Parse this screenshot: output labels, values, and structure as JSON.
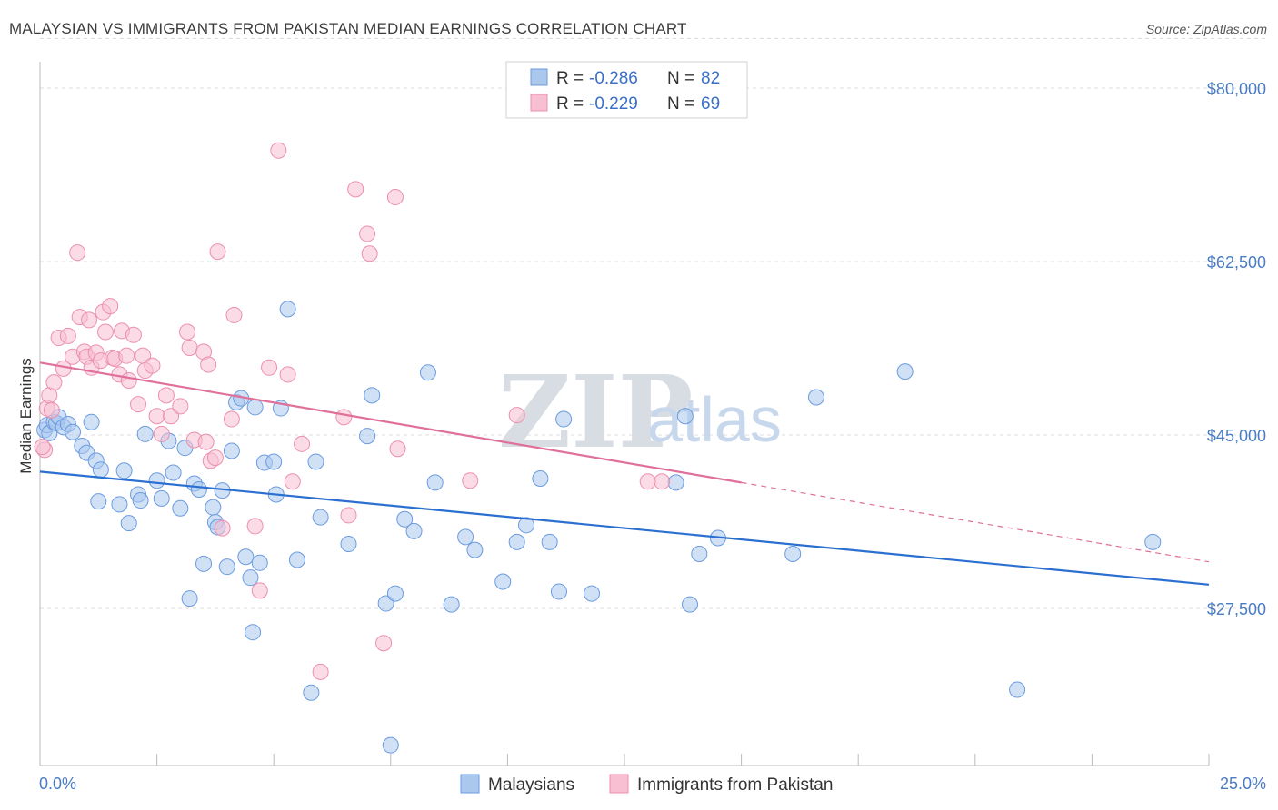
{
  "header": {
    "title": "MALAYSIAN VS IMMIGRANTS FROM PAKISTAN MEDIAN EARNINGS CORRELATION CHART",
    "source": "Source: ZipAtlas.com"
  },
  "watermark": {
    "zip": "ZIP",
    "atlas": "atlas"
  },
  "legend": {
    "r_label": "R =",
    "n_label": "N =",
    "rows": [
      {
        "r": "-0.286",
        "n": "82"
      },
      {
        "r": "-0.229",
        "n": "69"
      }
    ]
  },
  "colors": {
    "blue_fill": "#aac8ee",
    "blue_stroke": "#6b9be0",
    "blue_line": "#2b6fd1",
    "pink_fill": "#f7bfd1",
    "pink_stroke": "#ec8fae",
    "pink_line": "#e0709a",
    "grid": "#dcdcdc",
    "tick_text": "#4a7cc4"
  },
  "chart_data": {
    "type": "scatter",
    "title": "MALAYSIAN VS IMMIGRANTS FROM PAKISTAN MEDIAN EARNINGS CORRELATION CHART",
    "xlabel": "",
    "ylabel": "Median Earnings",
    "xlim": [
      0,
      25
    ],
    "ylim": [
      15000,
      85000
    ],
    "x_tick_labels": [
      "0.0%",
      "25.0%"
    ],
    "y_ticks": [
      27500,
      45000,
      62500,
      80000
    ],
    "y_tick_labels": [
      "$27,500",
      "$45,000",
      "$62,500",
      "$80,000"
    ],
    "grid": true,
    "legend_position": "top-center",
    "series": [
      {
        "name": "Malaysians",
        "r": -0.286,
        "n": 82,
        "trend": {
          "x": [
            0,
            25
          ],
          "y": [
            41300,
            29900
          ]
        },
        "points": [
          [
            0.1,
            45500
          ],
          [
            0.15,
            46000
          ],
          [
            0.2,
            45200
          ],
          [
            0.3,
            46300
          ],
          [
            0.35,
            46200
          ],
          [
            0.4,
            46800
          ],
          [
            0.5,
            45800
          ],
          [
            0.6,
            46100
          ],
          [
            0.7,
            45300
          ],
          [
            0.9,
            43900
          ],
          [
            1.0,
            43200
          ],
          [
            1.1,
            46300
          ],
          [
            1.2,
            42400
          ],
          [
            1.3,
            41500
          ],
          [
            1.25,
            38300
          ],
          [
            1.7,
            38000
          ],
          [
            1.8,
            41400
          ],
          [
            1.9,
            36100
          ],
          [
            2.1,
            39000
          ],
          [
            2.15,
            38400
          ],
          [
            2.25,
            45100
          ],
          [
            2.5,
            40400
          ],
          [
            2.6,
            38600
          ],
          [
            2.75,
            44400
          ],
          [
            2.85,
            41200
          ],
          [
            3.0,
            37600
          ],
          [
            3.1,
            43700
          ],
          [
            3.2,
            28500
          ],
          [
            3.3,
            40100
          ],
          [
            3.4,
            39500
          ],
          [
            3.5,
            32000
          ],
          [
            3.7,
            37700
          ],
          [
            3.75,
            36200
          ],
          [
            3.8,
            35700
          ],
          [
            3.9,
            39400
          ],
          [
            4.0,
            31700
          ],
          [
            4.1,
            43400
          ],
          [
            4.2,
            48300
          ],
          [
            4.3,
            48700
          ],
          [
            4.4,
            32700
          ],
          [
            4.5,
            30600
          ],
          [
            4.55,
            25100
          ],
          [
            4.6,
            47800
          ],
          [
            4.7,
            32100
          ],
          [
            4.8,
            42200
          ],
          [
            5.0,
            42300
          ],
          [
            5.05,
            39000
          ],
          [
            5.15,
            47700
          ],
          [
            5.3,
            57700
          ],
          [
            5.5,
            32400
          ],
          [
            5.8,
            19000
          ],
          [
            5.9,
            42300
          ],
          [
            6.0,
            36700
          ],
          [
            6.6,
            34000
          ],
          [
            7.0,
            44900
          ],
          [
            7.1,
            49000
          ],
          [
            7.4,
            28000
          ],
          [
            7.5,
            13700
          ],
          [
            7.6,
            29000
          ],
          [
            7.8,
            36500
          ],
          [
            8.0,
            35300
          ],
          [
            8.3,
            51300
          ],
          [
            8.45,
            40200
          ],
          [
            8.8,
            27900
          ],
          [
            9.1,
            34700
          ],
          [
            9.3,
            33400
          ],
          [
            9.9,
            30200
          ],
          [
            10.2,
            34200
          ],
          [
            10.4,
            35900
          ],
          [
            10.7,
            40600
          ],
          [
            10.9,
            34200
          ],
          [
            11.1,
            29200
          ],
          [
            11.2,
            46600
          ],
          [
            11.8,
            29000
          ],
          [
            13.6,
            40200
          ],
          [
            13.8,
            46900
          ],
          [
            13.9,
            27900
          ],
          [
            14.1,
            33000
          ],
          [
            14.5,
            34600
          ],
          [
            16.1,
            33000
          ],
          [
            16.6,
            48800
          ],
          [
            18.5,
            51400
          ],
          [
            20.9,
            19300
          ],
          [
            23.8,
            34200
          ]
        ]
      },
      {
        "name": "Immigrants from Pakistan",
        "r": -0.229,
        "n": 69,
        "trend": {
          "x": [
            0,
            15
          ],
          "y": [
            52300,
            40200
          ]
        },
        "trend_extension": {
          "x": [
            15,
            25
          ],
          "y": [
            40200,
            32200
          ]
        },
        "points": [
          [
            0.1,
            43500
          ],
          [
            0.15,
            47700
          ],
          [
            0.2,
            49000
          ],
          [
            0.3,
            50300
          ],
          [
            0.4,
            54800
          ],
          [
            0.5,
            51700
          ],
          [
            0.6,
            55000
          ],
          [
            0.7,
            52900
          ],
          [
            0.8,
            63400
          ],
          [
            0.85,
            56900
          ],
          [
            0.95,
            53400
          ],
          [
            1.0,
            52900
          ],
          [
            1.05,
            56600
          ],
          [
            1.1,
            51800
          ],
          [
            1.2,
            53300
          ],
          [
            1.3,
            52500
          ],
          [
            1.35,
            57400
          ],
          [
            1.4,
            55400
          ],
          [
            1.5,
            58000
          ],
          [
            1.55,
            52800
          ],
          [
            1.6,
            52700
          ],
          [
            1.7,
            51100
          ],
          [
            1.75,
            55500
          ],
          [
            1.85,
            53000
          ],
          [
            1.9,
            50500
          ],
          [
            2.0,
            55100
          ],
          [
            2.1,
            48100
          ],
          [
            2.2,
            53000
          ],
          [
            2.25,
            51500
          ],
          [
            2.4,
            52000
          ],
          [
            2.5,
            46900
          ],
          [
            2.6,
            45100
          ],
          [
            2.7,
            49000
          ],
          [
            2.8,
            46900
          ],
          [
            3.0,
            47900
          ],
          [
            3.15,
            55400
          ],
          [
            3.2,
            53800
          ],
          [
            3.3,
            44500
          ],
          [
            3.5,
            53400
          ],
          [
            3.55,
            44300
          ],
          [
            3.6,
            52100
          ],
          [
            3.65,
            42400
          ],
          [
            3.75,
            42700
          ],
          [
            3.8,
            63500
          ],
          [
            3.9,
            35600
          ],
          [
            4.1,
            46600
          ],
          [
            4.15,
            57100
          ],
          [
            4.6,
            35800
          ],
          [
            4.7,
            29300
          ],
          [
            4.9,
            51800
          ],
          [
            5.1,
            73700
          ],
          [
            5.3,
            51100
          ],
          [
            5.4,
            40300
          ],
          [
            5.6,
            44100
          ],
          [
            6.0,
            21100
          ],
          [
            6.5,
            46800
          ],
          [
            6.6,
            36900
          ],
          [
            6.75,
            69800
          ],
          [
            7.0,
            65300
          ],
          [
            7.05,
            63300
          ],
          [
            7.35,
            24000
          ],
          [
            7.6,
            69000
          ],
          [
            7.65,
            43600
          ],
          [
            9.2,
            40400
          ],
          [
            10.2,
            47000
          ],
          [
            13.0,
            40300
          ],
          [
            13.3,
            40300
          ],
          [
            0.05,
            43800
          ],
          [
            0.25,
            47500
          ]
        ]
      }
    ]
  },
  "axes": {
    "x_start_label": "0.0%",
    "x_end_label": "25.0%"
  }
}
